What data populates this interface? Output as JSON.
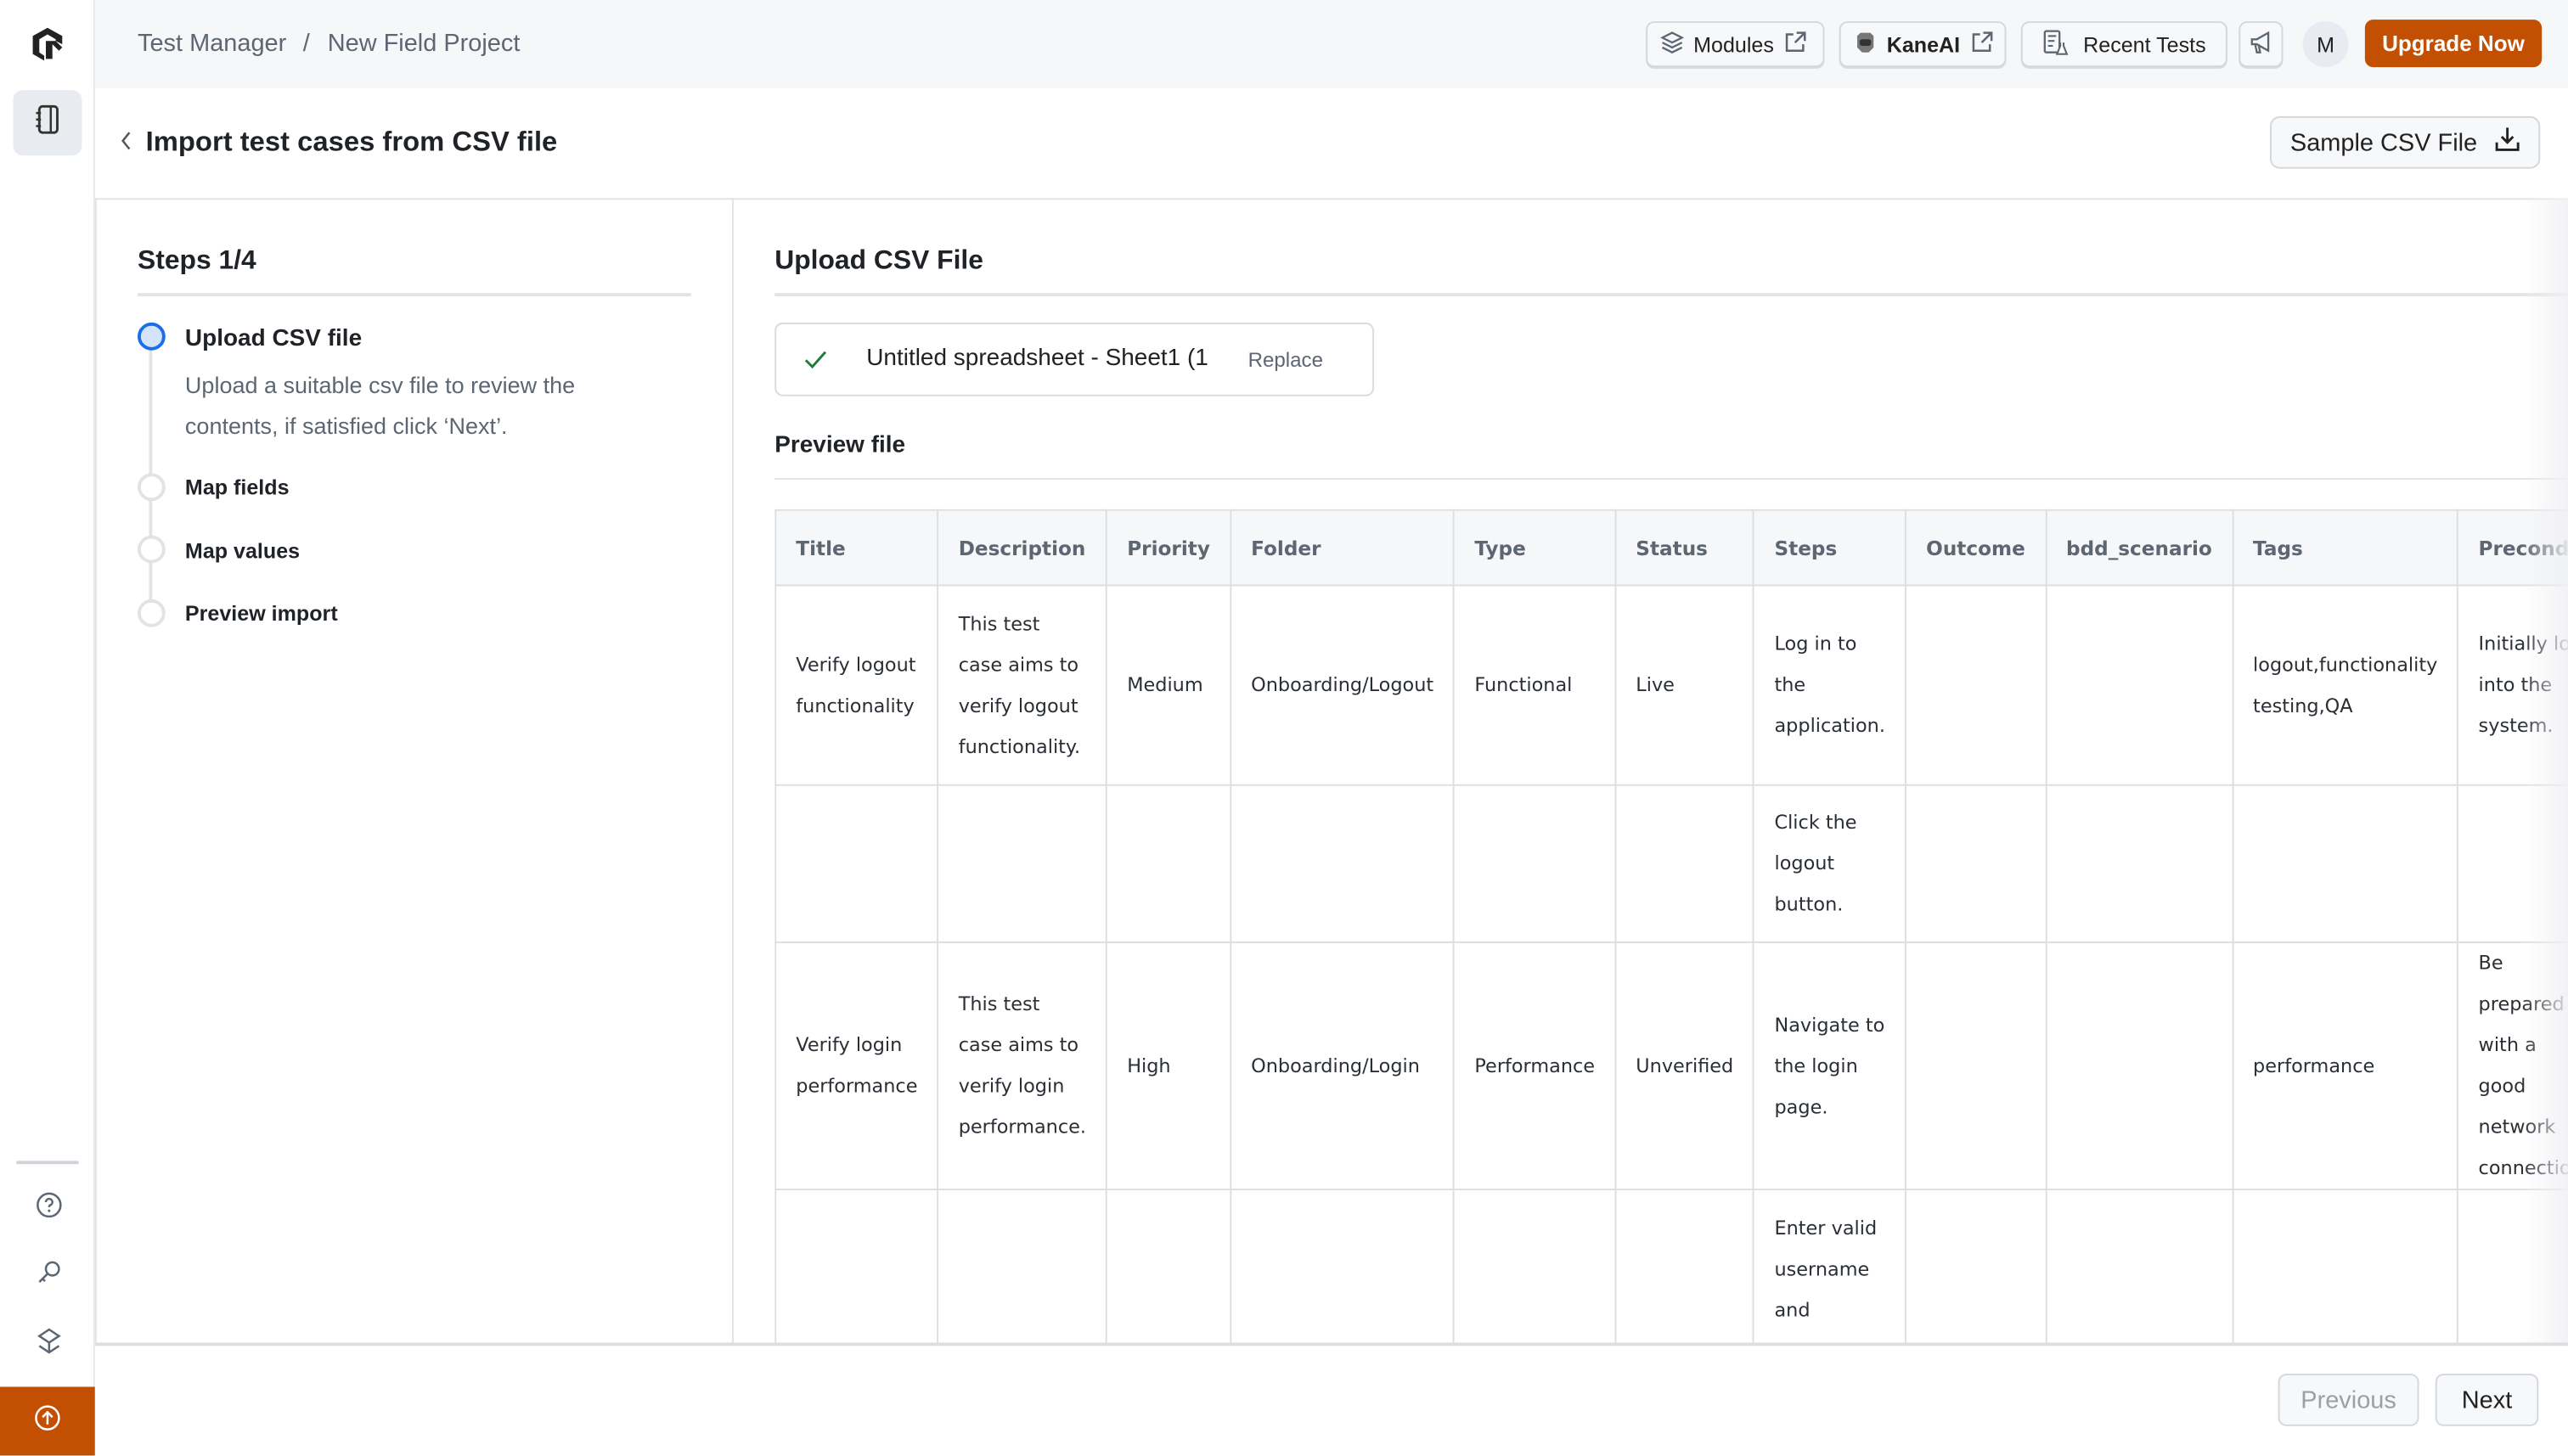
{
  "sidebar": {
    "logo": "LambdaTest logo",
    "items": [
      "test-manager",
      "help",
      "keys",
      "integrations",
      "upgrade"
    ]
  },
  "topbar": {
    "breadcrumb": [
      "Test Manager",
      "New Field Project"
    ],
    "separator": "/",
    "modules_label": "Modules",
    "kaneai_label": "KaneAI",
    "recent_tests_label": "Recent Tests",
    "avatar_initial": "M",
    "upgrade_label": "Upgrade Now"
  },
  "header": {
    "title": "Import test cases from CSV file",
    "sample_csv_label": "Sample CSV File"
  },
  "steps": {
    "title": "Steps 1/4",
    "items": [
      {
        "label": "Upload CSV file",
        "description": "Upload a suitable csv file to review the contents, if satisfied click ‘Next’.",
        "active": true
      },
      {
        "label": "Map fields",
        "active": false
      },
      {
        "label": "Map values",
        "active": false
      },
      {
        "label": "Preview import",
        "active": false
      }
    ]
  },
  "upload": {
    "title": "Upload CSV File",
    "file_name": "Untitled spreadsheet - Sheet1 (1",
    "replace_label": "Replace",
    "preview_title": "Preview file"
  },
  "table": {
    "columns": [
      "Title",
      "Description",
      "Priority",
      "Folder",
      "Type",
      "Status",
      "Steps",
      "Outcome",
      "bdd_scenario",
      "Tags",
      "Precond"
    ],
    "rows": [
      [
        "Verify logout functionality",
        "This test case aims to verify logout functionality.",
        "Medium",
        "Onboarding/Logout",
        "Functional",
        "Live",
        "Log in to the application.",
        "",
        "",
        "logout,functionality testing,QA",
        "Initially log into the system."
      ],
      [
        "",
        "",
        "",
        "",
        "",
        "",
        "Click the logout button.",
        "",
        "",
        "",
        ""
      ],
      [
        "Verify login performance",
        "This test case aims to verify login performance.",
        "High",
        "Onboarding/Login",
        "Performance",
        "Unverified",
        "Navigate to the login page.",
        "",
        "",
        "performance",
        "Be prepared with a good network connection."
      ],
      [
        "",
        "",
        "",
        "",
        "",
        "",
        "Enter valid username and password.",
        "",
        "",
        "",
        ""
      ]
    ]
  },
  "footer": {
    "previous_label": "Previous",
    "next_label": "Next"
  },
  "colors": {
    "accent": "#c24f02",
    "active_step": "#1a6ee8",
    "success": "#1e7d3a"
  }
}
